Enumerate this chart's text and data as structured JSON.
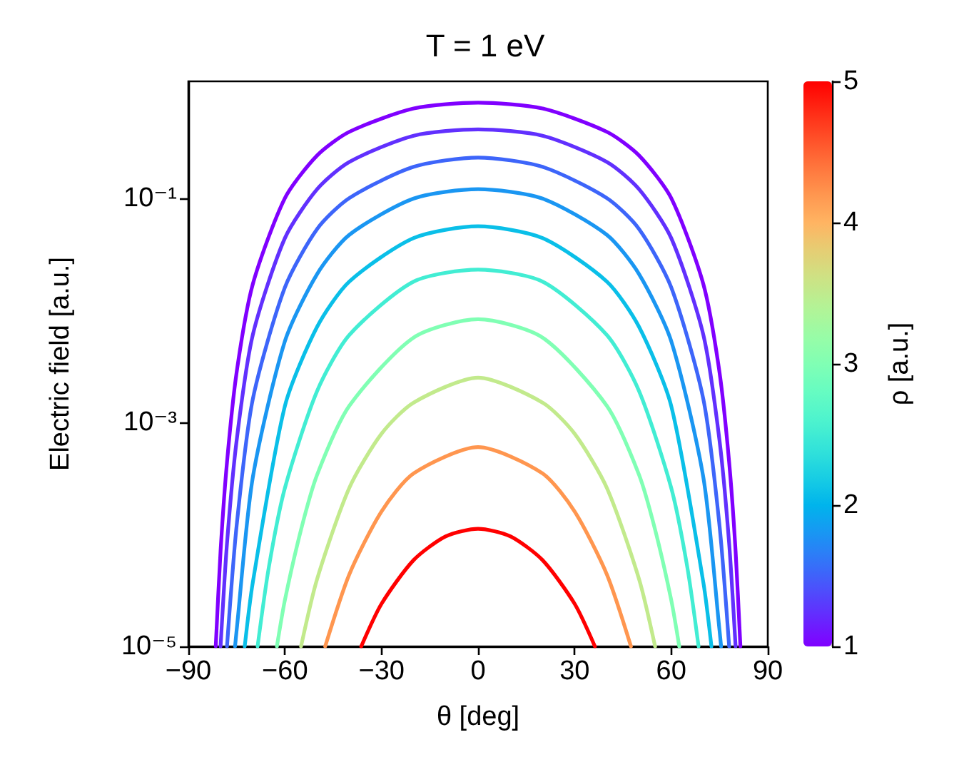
{
  "chart_data": {
    "type": "line",
    "title": "T = 1 eV",
    "xlabel": "θ [deg]",
    "ylabel": "Electric field [a.u.]",
    "clabel": "ρ [a.u.]",
    "xlim": [
      -90,
      90
    ],
    "xticks": [
      -90,
      -60,
      -30,
      0,
      30,
      60,
      90
    ],
    "ylim": [
      1e-05,
      1.1
    ],
    "yticks": [
      {
        "value": 1e-05,
        "label": "10⁻⁵"
      },
      {
        "value": 0.001,
        "label": "10⁻³"
      },
      {
        "value": 0.1,
        "label": "10⁻¹"
      }
    ],
    "log": "y",
    "grid": false,
    "marker": "none",
    "line_style": "solid",
    "clim": [
      1,
      5
    ],
    "cticks": [
      1,
      2,
      3,
      4,
      5
    ],
    "series": [
      {
        "color": "#8000ff",
        "x": [
          -81.5,
          -80,
          -78,
          -75,
          -70,
          -60,
          -50,
          -40,
          -20,
          0,
          20,
          40,
          50,
          60,
          70,
          75,
          78,
          80,
          81.5
        ],
        "values": [
          1e-05,
          7.1e-05,
          0.00044,
          0.0028,
          0.017,
          0.1,
          0.24,
          0.39,
          0.63,
          0.71,
          0.63,
          0.39,
          0.24,
          0.1,
          0.017,
          0.0028,
          0.00044,
          7.1e-05,
          1e-05
        ]
      },
      {
        "color": "#6130fe",
        "x": [
          -80,
          -78,
          -75,
          -70,
          -60,
          -50,
          -40,
          -20,
          0,
          20,
          40,
          50,
          60,
          70,
          75,
          78,
          80
        ],
        "values": [
          1e-05,
          8.3e-05,
          0.00069,
          0.006,
          0.044,
          0.12,
          0.21,
          0.36,
          0.41,
          0.36,
          0.21,
          0.12,
          0.044,
          0.006,
          0.00069,
          8.3e-05,
          1e-05
        ]
      },
      {
        "color": "#3d65fa",
        "x": [
          -78,
          -75,
          -70,
          -60,
          -50,
          -40,
          -20,
          0,
          20,
          40,
          50,
          60,
          70,
          75,
          78
        ],
        "values": [
          1e-05,
          0.00012,
          0.0016,
          0.016,
          0.053,
          0.1,
          0.19,
          0.23,
          0.19,
          0.1,
          0.053,
          0.016,
          0.0016,
          0.00012,
          1e-05
        ]
      },
      {
        "color": "#1a96f2",
        "x": [
          -75.5,
          -75,
          -70,
          -60,
          -50,
          -40,
          -20,
          0,
          20,
          40,
          50,
          60,
          70,
          75,
          75.5
        ],
        "values": [
          1e-05,
          1.4e-05,
          0.00032,
          0.0053,
          0.021,
          0.047,
          0.099,
          0.12,
          0.099,
          0.047,
          0.021,
          0.0053,
          0.00032,
          1.4e-05,
          1e-05
        ]
      },
      {
        "color": "#0abfe8",
        "x": [
          -72.5,
          -70,
          -60,
          -50,
          -40,
          -20,
          0,
          20,
          40,
          50,
          60,
          70,
          72.5
        ],
        "values": [
          1e-05,
          3.7e-05,
          0.0014,
          0.0071,
          0.018,
          0.044,
          0.056,
          0.044,
          0.018,
          0.0071,
          0.0014,
          3.7e-05,
          1e-05
        ]
      },
      {
        "color": "#42edd3",
        "x": [
          -68.5,
          -65,
          -60,
          -50,
          -40,
          -20,
          0,
          20,
          40,
          50,
          60,
          65,
          68.5
        ],
        "values": [
          1e-05,
          5.1e-05,
          0.00026,
          0.0019,
          0.006,
          0.018,
          0.023,
          0.018,
          0.006,
          0.0019,
          0.00026,
          5.1e-05,
          1e-05
        ]
      },
      {
        "color": "#80ffb4",
        "x": [
          -62.5,
          -60,
          -55,
          -50,
          -40,
          -20,
          0,
          20,
          40,
          50,
          55,
          60,
          62.5
        ],
        "values": [
          1e-05,
          2.6e-05,
          0.00011,
          0.00034,
          0.0014,
          0.0057,
          0.0083,
          0.0057,
          0.0014,
          0.00034,
          0.00011,
          2.6e-05,
          1e-05
        ]
      },
      {
        "color": "#c2ea8c",
        "x": [
          -55,
          -50,
          -40,
          -30,
          -20,
          0,
          20,
          30,
          40,
          50,
          55
        ],
        "values": [
          1e-05,
          4e-05,
          0.00026,
          0.00079,
          0.0015,
          0.0025,
          0.0015,
          0.00079,
          0.00026,
          4e-05,
          1e-05
        ]
      },
      {
        "color": "#ff964f",
        "x": [
          -47.5,
          -40,
          -30,
          -20,
          0,
          20,
          30,
          40,
          47.5
        ],
        "values": [
          1e-05,
          4.4e-05,
          0.00016,
          0.00035,
          0.0006,
          0.00035,
          0.00016,
          4.4e-05,
          1e-05
        ]
      },
      {
        "color": "#ff0000",
        "x": [
          -36.3,
          -30,
          -20,
          -10,
          0,
          10,
          20,
          30,
          36.3
        ],
        "values": [
          1e-05,
          2.4e-05,
          5.9e-05,
          9.6e-05,
          0.000112,
          9.6e-05,
          5.9e-05,
          2.4e-05,
          1e-05
        ]
      }
    ]
  }
}
